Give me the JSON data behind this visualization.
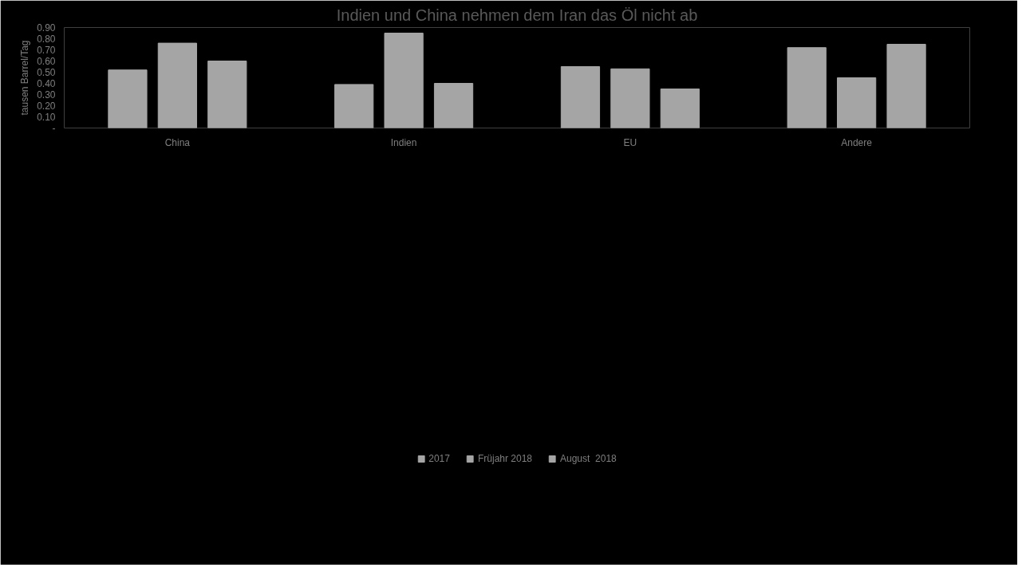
{
  "chart_data": {
    "type": "bar",
    "title": "Indien und China nehmen dem Iran das Öl nicht ab",
    "ylabel": "tausen Barrel/Tag",
    "categories": [
      "China",
      "Indien",
      "EU",
      "Andere"
    ],
    "series": [
      {
        "name": "2017",
        "color": "#a5a5a5",
        "values": [
          0.52,
          0.39,
          0.55,
          0.72
        ]
      },
      {
        "name": "Früjahr 2018",
        "color": "#a5a5a5",
        "values": [
          0.76,
          0.85,
          0.53,
          0.45
        ]
      },
      {
        "name": "August  2018",
        "color": "#a5a5a5",
        "values": [
          0.6,
          0.4,
          0.35,
          0.75
        ]
      }
    ],
    "ylim": [
      0,
      0.9
    ],
    "yticks": [
      {
        "value": 0,
        "label": "-"
      },
      {
        "value": 0.1,
        "label": "0.10"
      },
      {
        "value": 0.2,
        "label": "0.20"
      },
      {
        "value": 0.3,
        "label": "0.30"
      },
      {
        "value": 0.4,
        "label": "0.40"
      },
      {
        "value": 0.5,
        "label": "0.50"
      },
      {
        "value": 0.6,
        "label": "0.60"
      },
      {
        "value": 0.7,
        "label": "0.70"
      },
      {
        "value": 0.8,
        "label": "0.80"
      },
      {
        "value": 0.9,
        "label": "0.90"
      }
    ],
    "grid": false,
    "legend": "bottom"
  }
}
